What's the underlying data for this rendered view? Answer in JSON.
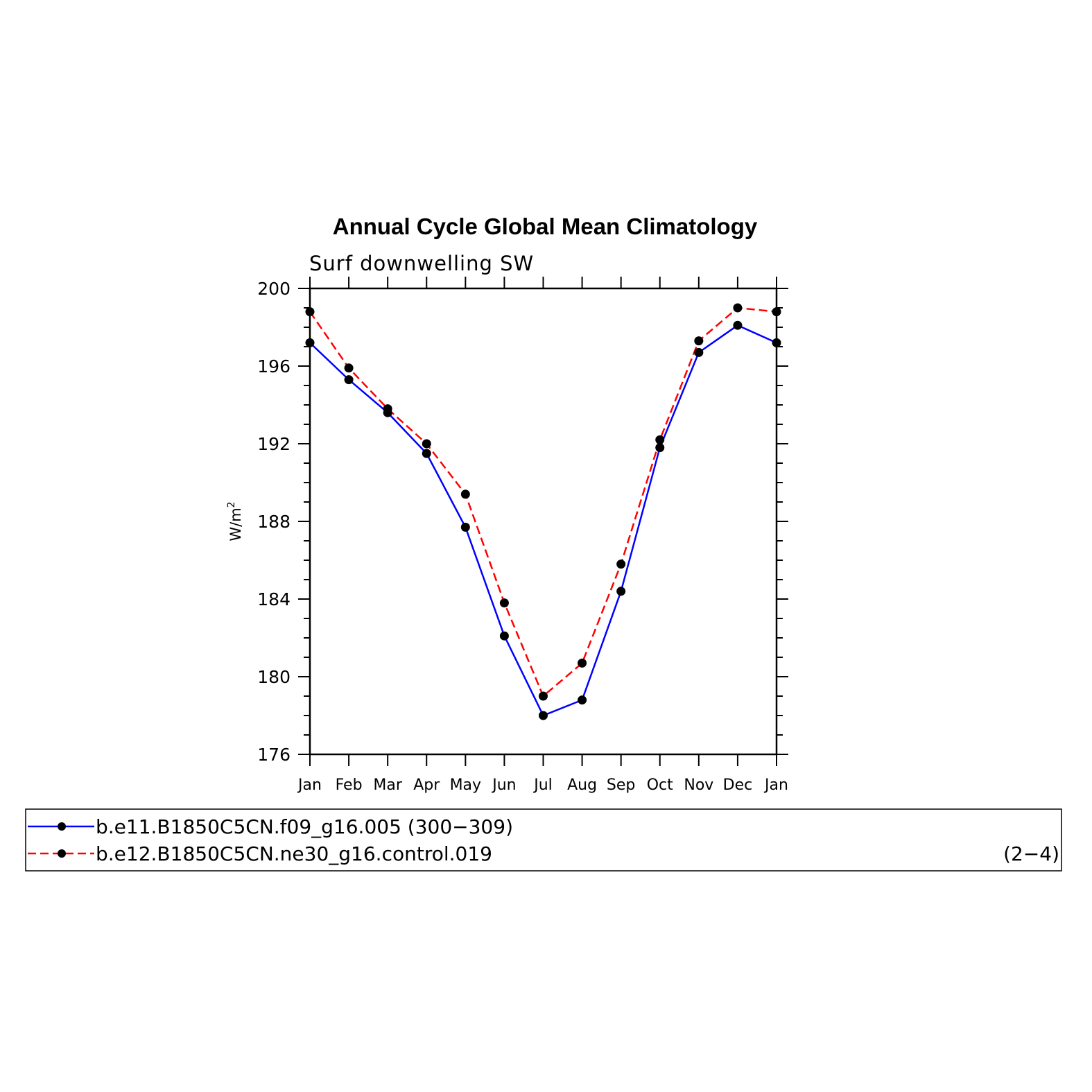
{
  "chart_data": {
    "type": "line",
    "title": "Annual Cycle Global Mean Climatology",
    "subtitle": "Surf downwelling SW",
    "ylabel_base": "W/m",
    "ylabel_sup": "2",
    "xlabel": "",
    "categories": [
      "Jan",
      "Feb",
      "Mar",
      "Apr",
      "May",
      "Jun",
      "Jul",
      "Aug",
      "Sep",
      "Oct",
      "Nov",
      "Dec",
      "Jan"
    ],
    "ylim": [
      176,
      200
    ],
    "yticks": [
      176,
      180,
      184,
      188,
      192,
      196,
      200
    ],
    "series": [
      {
        "name": "b.e11.B1850C5CN.f09_g16.005 (300−309)",
        "color": "#0000ff",
        "dash": "solid",
        "values": [
          197.2,
          195.3,
          193.6,
          191.5,
          187.7,
          182.1,
          178.0,
          178.8,
          184.4,
          191.8,
          196.7,
          198.1,
          197.2
        ]
      },
      {
        "name": "b.e12.B1850C5CN.ne30_g16.control.019",
        "color": "#ff0000",
        "dash": "dashed",
        "values": [
          198.8,
          195.9,
          193.8,
          192.0,
          189.4,
          183.8,
          179.0,
          180.7,
          185.8,
          192.2,
          197.3,
          199.0,
          198.8
        ]
      }
    ],
    "legend_note": "(2−4)",
    "legend_position": "bottom",
    "grid": false
  }
}
